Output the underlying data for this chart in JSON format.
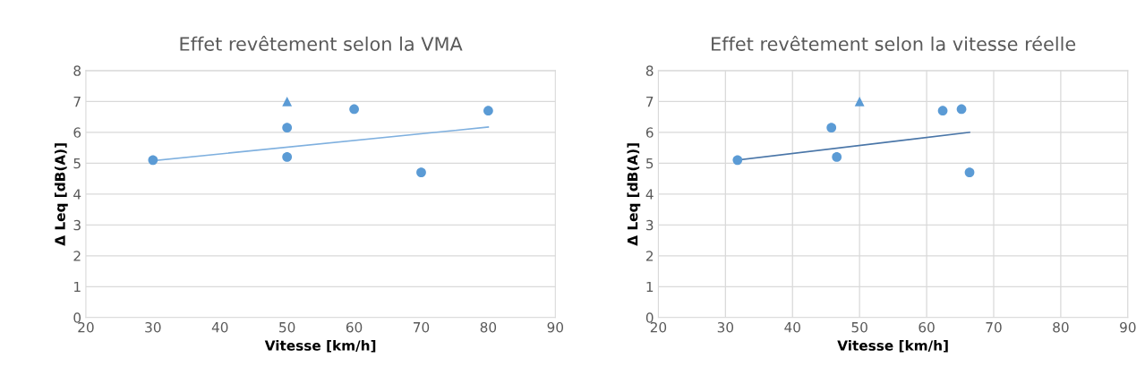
{
  "chart_data": [
    {
      "type": "scatter",
      "title": "Effet revêtement selon la VMA",
      "xlabel": "Vitesse [km/h]",
      "ylabel": "Δ Leq [dB(A)]",
      "xlim": [
        20,
        90
      ],
      "xticks": [
        20,
        30,
        40,
        50,
        60,
        70,
        80,
        90
      ],
      "ylim": [
        0,
        8
      ],
      "yticks": [
        0,
        1,
        2,
        3,
        4,
        5,
        6,
        7,
        8
      ],
      "grid": "y",
      "series": [
        {
          "marker": "circle",
          "color": "#5b9bd5",
          "x": [
            30,
            50,
            50,
            60,
            70,
            80
          ],
          "values": [
            5.1,
            6.15,
            5.2,
            6.75,
            4.7,
            6.7
          ]
        },
        {
          "marker": "triangle",
          "color": "#5b9bd5",
          "x": [
            50
          ],
          "values": [
            7.0
          ]
        },
        {
          "type": "line",
          "marker": "none",
          "color": "#7fb0df",
          "x": [
            30,
            80
          ],
          "values": [
            5.08,
            6.17
          ]
        }
      ]
    },
    {
      "type": "scatter",
      "title": "Effet revêtement selon la vitesse réelle",
      "xlabel": "Vitesse [km/h]",
      "ylabel": "Δ Leq [dB(A)]",
      "xlim": [
        20,
        90
      ],
      "xticks": [
        20,
        30,
        40,
        50,
        60,
        70,
        80,
        90
      ],
      "ylim": [
        0,
        8
      ],
      "yticks": [
        0,
        1,
        2,
        3,
        4,
        5,
        6,
        7,
        8
      ],
      "grid": true,
      "series": [
        {
          "marker": "circle",
          "color": "#5b9bd5",
          "x": [
            31.8,
            45.8,
            46.6,
            62.4,
            65.2,
            66.4
          ],
          "values": [
            5.1,
            6.15,
            5.2,
            6.7,
            6.75,
            4.7
          ]
        },
        {
          "marker": "triangle",
          "color": "#5b9bd5",
          "x": [
            50
          ],
          "values": [
            7.0
          ]
        },
        {
          "type": "line",
          "marker": "none",
          "color": "#4a76a8",
          "x": [
            31.8,
            66.4
          ],
          "values": [
            5.1,
            6.0
          ]
        }
      ]
    }
  ]
}
